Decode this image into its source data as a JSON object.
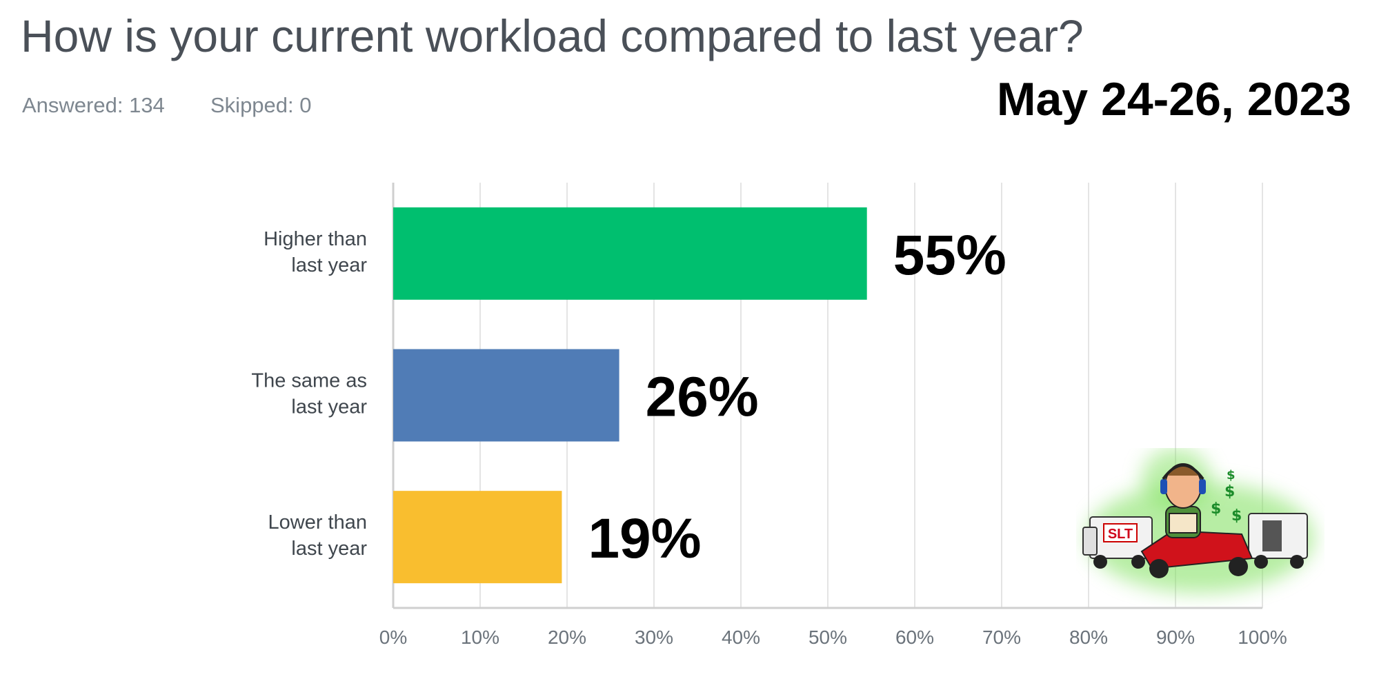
{
  "title": "How is your current workload compared to last year?",
  "answered": "Answered: 134",
  "skipped": "Skipped: 0",
  "date": "May 24-26, 2023",
  "logo_text": "SLT",
  "chart_data": {
    "type": "bar",
    "orientation": "horizontal",
    "categories": [
      [
        "Higher than",
        "last year"
      ],
      [
        "The same as",
        "last year"
      ],
      [
        "Lower than",
        "last year"
      ]
    ],
    "values": [
      54.5,
      26,
      19.4
    ],
    "value_labels": [
      "55%",
      "26%",
      "19%"
    ],
    "colors": [
      "#00bf6f",
      "#507cb6",
      "#f9be2f"
    ],
    "xlim": [
      0,
      100
    ],
    "xticks": [
      0,
      10,
      20,
      30,
      40,
      50,
      60,
      70,
      80,
      90,
      100
    ],
    "xtick_labels": [
      "0%",
      "10%",
      "20%",
      "30%",
      "40%",
      "50%",
      "60%",
      "70%",
      "80%",
      "90%",
      "100%"
    ],
    "grid": true
  }
}
